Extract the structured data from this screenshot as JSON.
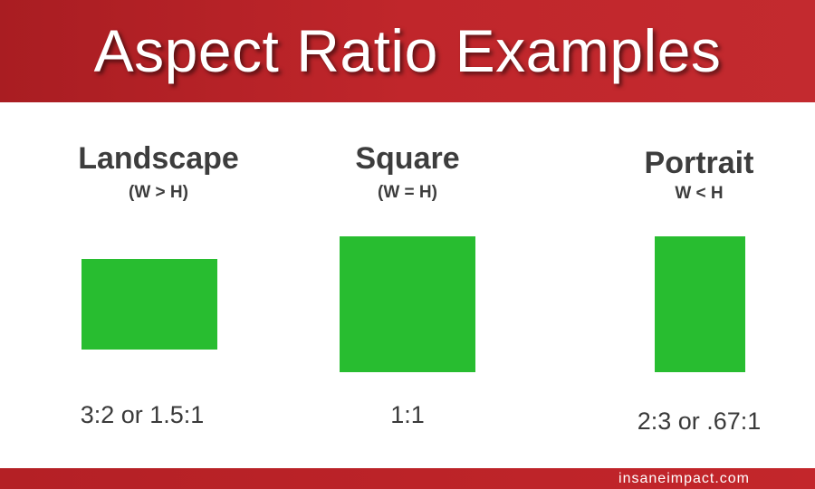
{
  "header": {
    "title": "Aspect Ratio Examples"
  },
  "examples": [
    {
      "title": "Landscape",
      "subtitle": "(W > H)",
      "ratio": "3:2 or 1.5:1"
    },
    {
      "title": "Square",
      "subtitle": "(W = H)",
      "ratio": "1:1"
    },
    {
      "title": "Portrait",
      "subtitle": "W < H",
      "ratio": "2:3 or .67:1"
    }
  ],
  "colors": {
    "banner": "#c0262b",
    "shape": "#28bd30",
    "text": "#3d3d3d"
  },
  "footer": {
    "site": "insaneimpact.com"
  }
}
